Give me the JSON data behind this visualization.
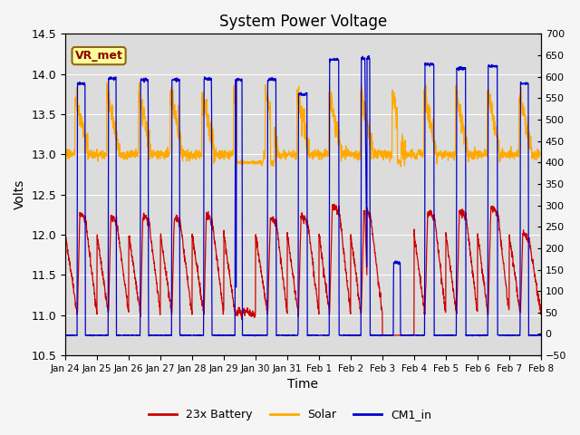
{
  "title": "System Power Voltage",
  "xlabel": "Time",
  "ylabel": "Volts",
  "ylim_left": [
    10.5,
    14.5
  ],
  "ylim_right": [
    -50,
    700
  ],
  "yticks_left": [
    10.5,
    11.0,
    11.5,
    12.0,
    12.5,
    13.0,
    13.5,
    14.0,
    14.5
  ],
  "yticks_right": [
    -50,
    0,
    50,
    100,
    150,
    200,
    250,
    300,
    350,
    400,
    450,
    500,
    550,
    600,
    650,
    700
  ],
  "xtick_labels": [
    "Jan 24",
    "Jan 25",
    "Jan 26",
    "Jan 27",
    "Jan 28",
    "Jan 29",
    "Jan 30",
    "Jan 31",
    "Feb 1",
    "Feb 2",
    "Feb 3",
    "Feb 4",
    "Feb 5",
    "Feb 6",
    "Feb 7",
    "Feb 8"
  ],
  "legend_labels": [
    "23x Battery",
    "Solar",
    "CM1_in"
  ],
  "legend_colors": [
    "#cc0000",
    "#ffaa00",
    "#0000cc"
  ],
  "annotation_text": "VR_met",
  "annotation_color": "#8b0000",
  "annotation_bg": "#ffff99",
  "battery_color": "#cc0000",
  "solar_color": "#ffaa00",
  "cm1_color": "#0000cc",
  "bg_color": "#dcdcdc",
  "grid_color": "#ffffff",
  "n_days": 15,
  "n_points_per_day": 144
}
